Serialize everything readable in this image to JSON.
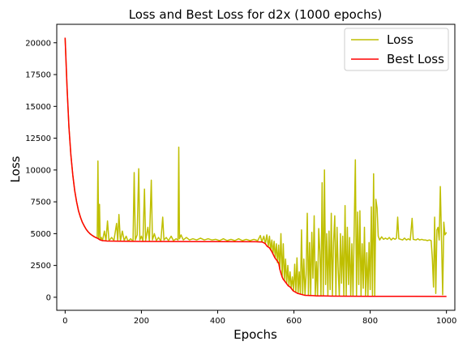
{
  "chart_data": {
    "type": "line",
    "title": "Loss and Best Loss for d2x (1000 epochs)",
    "xlabel": "Epochs",
    "ylabel": "Loss",
    "xlim": [
      -22,
      1022
    ],
    "ylim": [
      -1025,
      21450
    ],
    "x_ticks": [
      0,
      200,
      400,
      600,
      800,
      1000
    ],
    "y_ticks": [
      0,
      2500,
      5000,
      7500,
      10000,
      12500,
      15000,
      17500,
      20000
    ],
    "grid": false,
    "legend_position": "top-right",
    "series": [
      {
        "name": "Loss",
        "color": "#bfbf00",
        "points": [
          [
            0,
            20400
          ],
          [
            5,
            16500
          ],
          [
            10,
            13400
          ],
          [
            15,
            11200
          ],
          [
            20,
            9600
          ],
          [
            25,
            8400
          ],
          [
            30,
            7500
          ],
          [
            35,
            6800
          ],
          [
            40,
            6300
          ],
          [
            45,
            5900
          ],
          [
            50,
            5600
          ],
          [
            55,
            5350
          ],
          [
            60,
            5150
          ],
          [
            65,
            5000
          ],
          [
            70,
            4880
          ],
          [
            75,
            4780
          ],
          [
            80,
            4700
          ],
          [
            84,
            4650
          ],
          [
            86,
            10700
          ],
          [
            88,
            4600
          ],
          [
            90,
            7300
          ],
          [
            92,
            4500
          ],
          [
            95,
            4700
          ],
          [
            98,
            4450
          ],
          [
            103,
            5200
          ],
          [
            107,
            4450
          ],
          [
            111,
            6000
          ],
          [
            115,
            4450
          ],
          [
            122,
            4700
          ],
          [
            128,
            4450
          ],
          [
            135,
            5800
          ],
          [
            138,
            4400
          ],
          [
            141,
            6500
          ],
          [
            145,
            4400
          ],
          [
            150,
            5200
          ],
          [
            155,
            4450
          ],
          [
            160,
            4800
          ],
          [
            165,
            4400
          ],
          [
            172,
            4600
          ],
          [
            178,
            4400
          ],
          [
            181,
            9800
          ],
          [
            184,
            4500
          ],
          [
            189,
            4900
          ],
          [
            193,
            10100
          ],
          [
            196,
            4500
          ],
          [
            200,
            4800
          ],
          [
            204,
            4400
          ],
          [
            208,
            8500
          ],
          [
            211,
            4450
          ],
          [
            217,
            5500
          ],
          [
            221,
            4400
          ],
          [
            226,
            9200
          ],
          [
            229,
            4500
          ],
          [
            234,
            5000
          ],
          [
            239,
            4450
          ],
          [
            245,
            4700
          ],
          [
            251,
            4400
          ],
          [
            256,
            6300
          ],
          [
            259,
            4500
          ],
          [
            265,
            4700
          ],
          [
            271,
            4450
          ],
          [
            278,
            4800
          ],
          [
            284,
            4450
          ],
          [
            291,
            4600
          ],
          [
            296,
            4500
          ],
          [
            298,
            11800
          ],
          [
            300,
            4600
          ],
          [
            304,
            4900
          ],
          [
            310,
            4500
          ],
          [
            318,
            4700
          ],
          [
            326,
            4500
          ],
          [
            335,
            4600
          ],
          [
            345,
            4500
          ],
          [
            355,
            4650
          ],
          [
            365,
            4500
          ],
          [
            375,
            4600
          ],
          [
            385,
            4500
          ],
          [
            395,
            4550
          ],
          [
            405,
            4450
          ],
          [
            415,
            4600
          ],
          [
            425,
            4450
          ],
          [
            435,
            4550
          ],
          [
            445,
            4450
          ],
          [
            455,
            4600
          ],
          [
            465,
            4450
          ],
          [
            475,
            4550
          ],
          [
            485,
            4450
          ],
          [
            495,
            4550
          ],
          [
            505,
            4450
          ],
          [
            512,
            4850
          ],
          [
            516,
            4350
          ],
          [
            521,
            4800
          ],
          [
            525,
            4200
          ],
          [
            529,
            4900
          ],
          [
            533,
            4000
          ],
          [
            536,
            4800
          ],
          [
            539,
            3700
          ],
          [
            542,
            4500
          ],
          [
            545,
            3400
          ],
          [
            548,
            4400
          ],
          [
            551,
            3100
          ],
          [
            554,
            4200
          ],
          [
            557,
            2700
          ],
          [
            560,
            4100
          ],
          [
            563,
            2200
          ],
          [
            566,
            5000
          ],
          [
            569,
            1600
          ],
          [
            572,
            4200
          ],
          [
            575,
            1300
          ],
          [
            578,
            3000
          ],
          [
            581,
            1100
          ],
          [
            584,
            2500
          ],
          [
            587,
            900
          ],
          [
            590,
            2000
          ],
          [
            593,
            700
          ],
          [
            596,
            1600
          ],
          [
            599,
            500
          ],
          [
            602,
            2600
          ],
          [
            605,
            400
          ],
          [
            608,
            3100
          ],
          [
            611,
            300
          ],
          [
            614,
            2000
          ],
          [
            617,
            250
          ],
          [
            620,
            5300
          ],
          [
            623,
            200
          ],
          [
            626,
            3000
          ],
          [
            629,
            150
          ],
          [
            632,
            1800
          ],
          [
            635,
            6600
          ],
          [
            638,
            150
          ],
          [
            641,
            4300
          ],
          [
            644,
            150
          ],
          [
            647,
            5100
          ],
          [
            650,
            1500
          ],
          [
            653,
            6400
          ],
          [
            656,
            150
          ],
          [
            659,
            2800
          ],
          [
            662,
            100
          ],
          [
            665,
            5400
          ],
          [
            668,
            3600
          ],
          [
            671,
            100
          ],
          [
            674,
            9000
          ],
          [
            677,
            150
          ],
          [
            680,
            10000
          ],
          [
            683,
            1000
          ],
          [
            686,
            5000
          ],
          [
            689,
            100
          ],
          [
            692,
            5200
          ],
          [
            695,
            600
          ],
          [
            698,
            6600
          ],
          [
            701,
            100
          ],
          [
            704,
            4300
          ],
          [
            707,
            6400
          ],
          [
            710,
            100
          ],
          [
            713,
            5500
          ],
          [
            716,
            2200
          ],
          [
            719,
            100
          ],
          [
            722,
            5000
          ],
          [
            725,
            1100
          ],
          [
            728,
            4800
          ],
          [
            731,
            100
          ],
          [
            734,
            7200
          ],
          [
            737,
            100
          ],
          [
            740,
            5500
          ],
          [
            743,
            1000
          ],
          [
            746,
            4700
          ],
          [
            749,
            150
          ],
          [
            752,
            4200
          ],
          [
            755,
            100
          ],
          [
            758,
            5100
          ],
          [
            761,
            10800
          ],
          [
            764,
            100
          ],
          [
            767,
            6700
          ],
          [
            770,
            1000
          ],
          [
            773,
            6800
          ],
          [
            776,
            100
          ],
          [
            779,
            4200
          ],
          [
            782,
            700
          ],
          [
            785,
            5500
          ],
          [
            788,
            100
          ],
          [
            791,
            3500
          ],
          [
            794,
            100
          ],
          [
            797,
            4300
          ],
          [
            800,
            600
          ],
          [
            803,
            7100
          ],
          [
            806,
            100
          ],
          [
            809,
            9700
          ],
          [
            812,
            100
          ],
          [
            815,
            7700
          ],
          [
            818,
            7000
          ],
          [
            821,
            4800
          ],
          [
            825,
            4500
          ],
          [
            830,
            4750
          ],
          [
            835,
            4550
          ],
          [
            840,
            4650
          ],
          [
            845,
            4550
          ],
          [
            850,
            4700
          ],
          [
            855,
            4500
          ],
          [
            860,
            4650
          ],
          [
            865,
            4550
          ],
          [
            869,
            4650
          ],
          [
            872,
            6300
          ],
          [
            875,
            4600
          ],
          [
            880,
            4550
          ],
          [
            885,
            4500
          ],
          [
            890,
            4650
          ],
          [
            895,
            4500
          ],
          [
            900,
            4600
          ],
          [
            905,
            4500
          ],
          [
            910,
            6200
          ],
          [
            913,
            4550
          ],
          [
            920,
            4500
          ],
          [
            925,
            4600
          ],
          [
            930,
            4500
          ],
          [
            935,
            4550
          ],
          [
            940,
            4500
          ],
          [
            945,
            4500
          ],
          [
            950,
            4450
          ],
          [
            955,
            4500
          ],
          [
            960,
            4450
          ],
          [
            963,
            3000
          ],
          [
            966,
            800
          ],
          [
            969,
            6300
          ],
          [
            972,
            300
          ],
          [
            975,
            5300
          ],
          [
            978,
            5500
          ],
          [
            981,
            4500
          ],
          [
            984,
            8700
          ],
          [
            987,
            4700
          ],
          [
            990,
            200
          ],
          [
            993,
            5900
          ],
          [
            996,
            4900
          ],
          [
            1000,
            5100
          ]
        ]
      },
      {
        "name": "Best Loss",
        "color": "#ff0000",
        "points": [
          [
            0,
            20400
          ],
          [
            5,
            16500
          ],
          [
            10,
            13400
          ],
          [
            15,
            11200
          ],
          [
            20,
            9600
          ],
          [
            25,
            8400
          ],
          [
            30,
            7500
          ],
          [
            35,
            6800
          ],
          [
            40,
            6300
          ],
          [
            45,
            5900
          ],
          [
            50,
            5600
          ],
          [
            55,
            5350
          ],
          [
            60,
            5150
          ],
          [
            65,
            5000
          ],
          [
            70,
            4880
          ],
          [
            75,
            4780
          ],
          [
            80,
            4700
          ],
          [
            84,
            4650
          ],
          [
            92,
            4500
          ],
          [
            98,
            4450
          ],
          [
            110,
            4420
          ],
          [
            130,
            4410
          ],
          [
            150,
            4400
          ],
          [
            200,
            4390
          ],
          [
            300,
            4380
          ],
          [
            400,
            4370
          ],
          [
            500,
            4360
          ],
          [
            510,
            4350
          ],
          [
            516,
            4350
          ],
          [
            520,
            4300
          ],
          [
            525,
            4200
          ],
          [
            530,
            4000
          ],
          [
            535,
            3900
          ],
          [
            540,
            3700
          ],
          [
            545,
            3400
          ],
          [
            550,
            3100
          ],
          [
            555,
            2900
          ],
          [
            560,
            2700
          ],
          [
            563,
            2200
          ],
          [
            566,
            1900
          ],
          [
            569,
            1600
          ],
          [
            572,
            1400
          ],
          [
            575,
            1300
          ],
          [
            580,
            1100
          ],
          [
            585,
            900
          ],
          [
            590,
            800
          ],
          [
            593,
            700
          ],
          [
            598,
            500
          ],
          [
            604,
            400
          ],
          [
            610,
            300
          ],
          [
            617,
            250
          ],
          [
            623,
            200
          ],
          [
            629,
            150
          ],
          [
            650,
            130
          ],
          [
            660,
            110
          ],
          [
            680,
            100
          ],
          [
            700,
            90
          ],
          [
            750,
            80
          ],
          [
            800,
            75
          ],
          [
            900,
            70
          ],
          [
            1000,
            65
          ]
        ]
      }
    ]
  }
}
